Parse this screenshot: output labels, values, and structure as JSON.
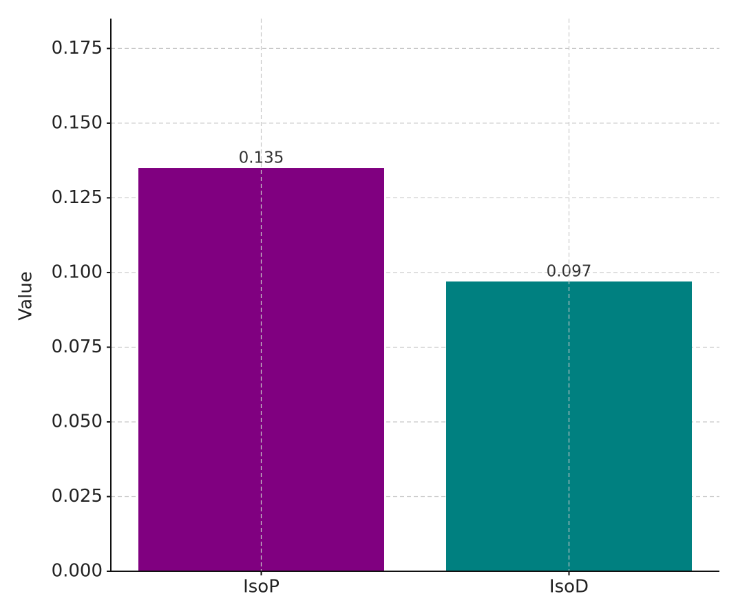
{
  "chart_data": {
    "type": "bar",
    "y_label": "Value",
    "categories": [
      "IsoP",
      "IsoD"
    ],
    "values": [
      0.135,
      0.097
    ],
    "colors": [
      "#800080",
      "#008080"
    ],
    "ylim": [
      0,
      0.185
    ],
    "yticks": [
      {
        "value": 0,
        "label": "0.000"
      },
      {
        "value": 0.025,
        "label": "0.025"
      },
      {
        "value": 0.05,
        "label": "0.050"
      },
      {
        "value": 0.075,
        "label": "0.075"
      },
      {
        "value": 0.1,
        "label": "0.100"
      },
      {
        "value": 0.125,
        "label": "0.125"
      },
      {
        "value": 0.15,
        "label": "0.150"
      },
      {
        "value": 0.175,
        "label": "0.175"
      }
    ],
    "grid": true
  }
}
